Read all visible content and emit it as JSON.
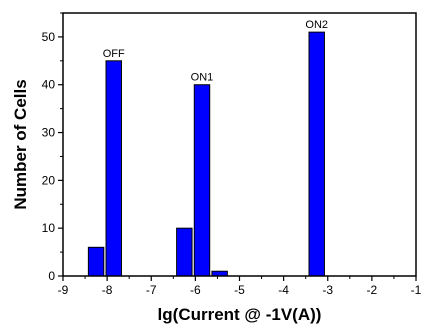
{
  "chart_data": {
    "type": "bar",
    "xlabel": "lg(Current @ -1V(A))",
    "ylabel": "Number of Cells",
    "xlim": [
      -9,
      -1
    ],
    "ylim": [
      0,
      55
    ],
    "xticks": [
      -9,
      -8,
      -7,
      -6,
      -5,
      -4,
      -3,
      -2,
      -1
    ],
    "xtick_labels": [
      "-9",
      "-8",
      "-7",
      "-6",
      "-5",
      "-4",
      "-3",
      "-2",
      "-1"
    ],
    "yticks": [
      0,
      10,
      20,
      30,
      40,
      50
    ],
    "ytick_labels": [
      "0",
      "10",
      "20",
      "30",
      "40",
      "50"
    ],
    "bar_color": "#0000ff",
    "bar_width": 0.35,
    "bars": [
      {
        "x": -8.25,
        "value": 6
      },
      {
        "x": -7.85,
        "value": 45
      },
      {
        "x": -6.25,
        "value": 10
      },
      {
        "x": -5.85,
        "value": 40
      },
      {
        "x": -5.45,
        "value": 1
      },
      {
        "x": -3.25,
        "value": 51
      }
    ],
    "annotations": [
      {
        "text": "OFF",
        "x": -7.85,
        "y": 45
      },
      {
        "text": "ON1",
        "x": -5.85,
        "y": 40
      },
      {
        "text": "ON2",
        "x": -3.25,
        "y": 51
      }
    ],
    "grid": false,
    "legend": "none"
  }
}
